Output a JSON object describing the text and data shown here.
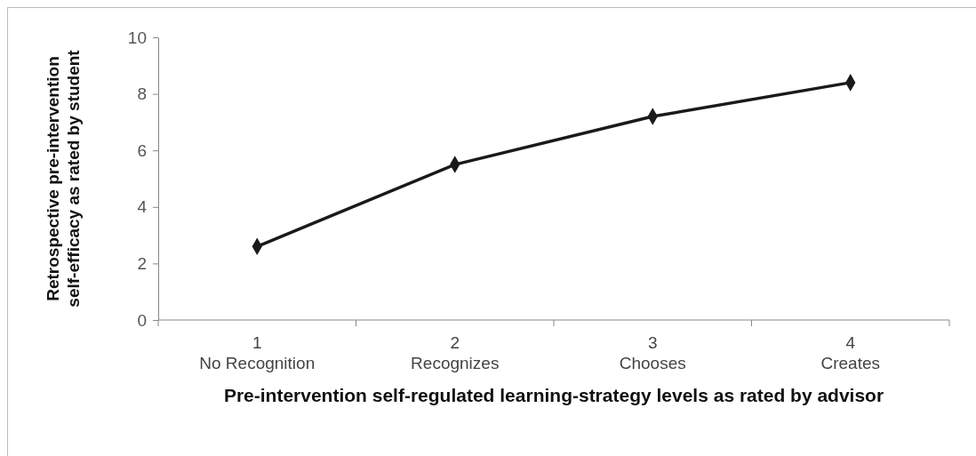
{
  "chart_data": {
    "type": "line",
    "xlabel": "Pre-intervention self-regulated learning-strategy levels as rated by advisor",
    "ylabel": "Retrospective pre-intervention self-efficacy as rated by student",
    "categories": [
      "1\nNo Recognition",
      "2\nRecognizes",
      "3\nChooses",
      "4\nCreates"
    ],
    "series": [
      {
        "color": "#1a1a1a",
        "values": [
          2.6,
          5.5,
          7.2,
          8.4
        ]
      }
    ],
    "ylim": [
      0,
      10
    ],
    "yticks": [
      0,
      2,
      4,
      6,
      8,
      10
    ],
    "marker": "diamond",
    "line_style": "solid"
  }
}
